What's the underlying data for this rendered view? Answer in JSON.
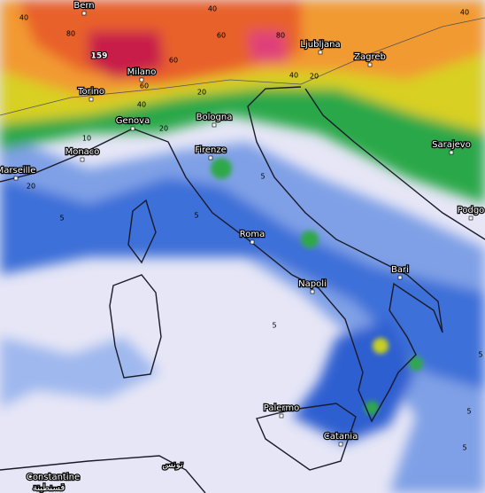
{
  "map": {
    "max_label": 159,
    "cities": [
      "Bern",
      "Ljubljana",
      "Zagreb",
      "Milano",
      "Torino",
      "Genova",
      "Bologna",
      "Monaco",
      "Marseille",
      "Firenze",
      "Sarajevo",
      "Podgo",
      "Roma",
      "Bari",
      "Napoli",
      "Palermo",
      "Catania",
      "Constantine",
      "قسنطينة",
      "تونس"
    ],
    "contour_labels": [
      40,
      80,
      40,
      60,
      80,
      40,
      60,
      60,
      20,
      40,
      20,
      40,
      20,
      10,
      20,
      5,
      5,
      5,
      5,
      5,
      5,
      5
    ]
  }
}
